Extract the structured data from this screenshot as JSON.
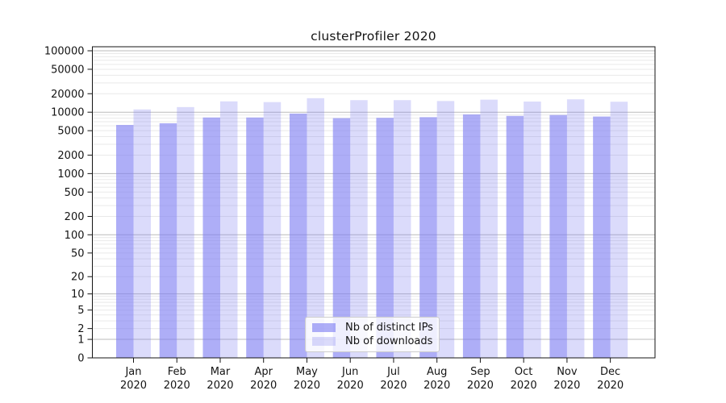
{
  "title": "clusterProfiler 2020",
  "chart_data": {
    "type": "bar",
    "title": "clusterProfiler 2020",
    "categories": [
      "Jan 2020",
      "Feb 2020",
      "Mar 2020",
      "Apr 2020",
      "May 2020",
      "Jun 2020",
      "Jul 2020",
      "Aug 2020",
      "Sep 2020",
      "Oct 2020",
      "Nov 2020",
      "Dec 2020"
    ],
    "months": [
      "Jan",
      "Feb",
      "Mar",
      "Apr",
      "May",
      "Jun",
      "Jul",
      "Aug",
      "Sep",
      "Oct",
      "Nov",
      "Dec"
    ],
    "year": "2020",
    "series": [
      {
        "name": "Nb of distinct IPs",
        "color": "#acacf3",
        "values": [
          6200,
          6600,
          8200,
          8200,
          9500,
          8000,
          8100,
          8300,
          9200,
          8700,
          9000,
          8500
        ]
      },
      {
        "name": "Nb of downloads",
        "color": "#dadaf9",
        "values": [
          11100,
          12100,
          15000,
          14600,
          16900,
          15700,
          15700,
          15200,
          16000,
          14900,
          16200,
          14800
        ]
      }
    ],
    "yscale": "log1p",
    "y_ticks": [
      0,
      1,
      2,
      5,
      10,
      20,
      50,
      100,
      200,
      500,
      1000,
      2000,
      5000,
      10000,
      20000,
      50000,
      100000
    ],
    "ylim": [
      0,
      115000
    ],
    "xlabel": "",
    "ylabel": "",
    "grid": true,
    "legend_position": "lower center"
  },
  "legend": {
    "items": [
      {
        "label": "Nb of distinct IPs",
        "color": "#acacf3"
      },
      {
        "label": "Nb of downloads",
        "color": "#dadaf9"
      }
    ]
  }
}
